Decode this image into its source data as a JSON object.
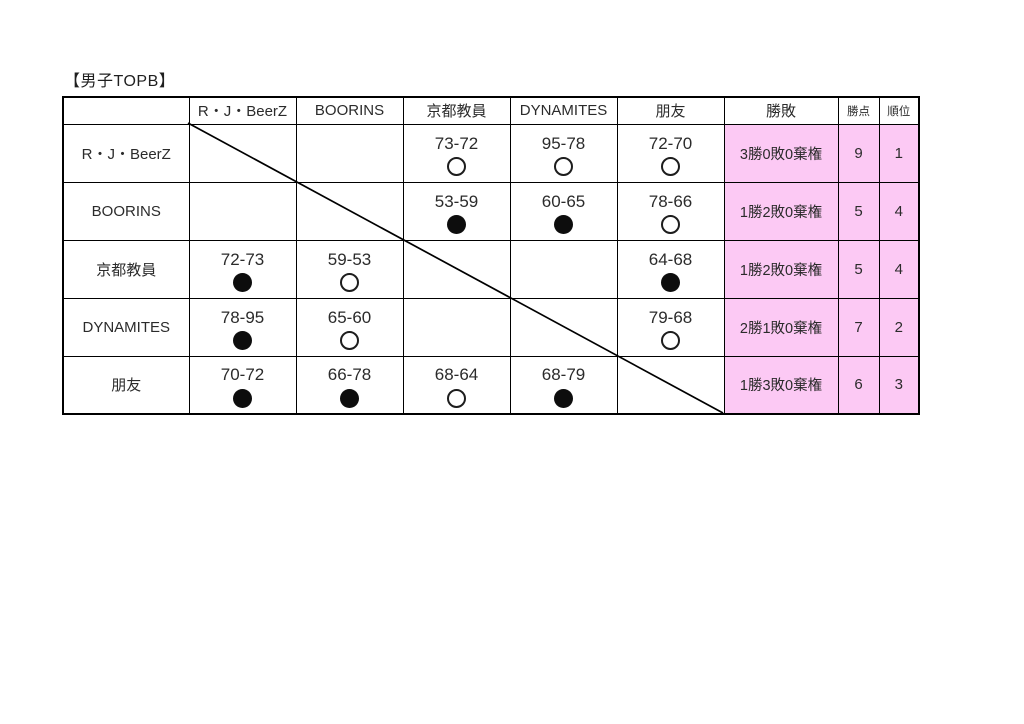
{
  "title": "【男子TOPB】",
  "colors": {
    "highlight_pink": "#fcc9f4",
    "border": "#000000",
    "text": "#2b2b2b"
  },
  "icons": {
    "win_mark": "○",
    "loss_mark": "●"
  },
  "table": {
    "headers": [
      "",
      "R・J・BeerZ",
      "BOORINS",
      "京都教員",
      "DYNAMITES",
      "朋友",
      "勝敗",
      "勝点",
      "順位"
    ],
    "rows": [
      {
        "team": "R・J・BeerZ",
        "results": [
          {
            "type": "self"
          },
          {
            "type": "empty"
          },
          {
            "type": "match",
            "score": "73-72",
            "result": "win"
          },
          {
            "type": "match",
            "score": "95-78",
            "result": "win"
          },
          {
            "type": "match",
            "score": "72-70",
            "result": "win"
          }
        ],
        "record": "3勝0敗0棄権",
        "points": "9",
        "rank": "1"
      },
      {
        "team": "BOORINS",
        "results": [
          {
            "type": "empty"
          },
          {
            "type": "self"
          },
          {
            "type": "match",
            "score": "53-59",
            "result": "loss"
          },
          {
            "type": "match",
            "score": "60-65",
            "result": "loss"
          },
          {
            "type": "match",
            "score": "78-66",
            "result": "win"
          }
        ],
        "record": "1勝2敗0棄権",
        "points": "5",
        "rank": "4"
      },
      {
        "team": "京都教員",
        "results": [
          {
            "type": "match",
            "score": "72-73",
            "result": "loss"
          },
          {
            "type": "match",
            "score": "59-53",
            "result": "win"
          },
          {
            "type": "self"
          },
          {
            "type": "empty"
          },
          {
            "type": "match",
            "score": "64-68",
            "result": "loss"
          }
        ],
        "record": "1勝2敗0棄権",
        "points": "5",
        "rank": "4"
      },
      {
        "team": "DYNAMITES",
        "results": [
          {
            "type": "match",
            "score": "78-95",
            "result": "loss"
          },
          {
            "type": "match",
            "score": "65-60",
            "result": "win"
          },
          {
            "type": "empty"
          },
          {
            "type": "self"
          },
          {
            "type": "match",
            "score": "79-68",
            "result": "win"
          }
        ],
        "record": "2勝1敗0棄権",
        "points": "7",
        "rank": "2"
      },
      {
        "team": "朋友",
        "results": [
          {
            "type": "match",
            "score": "70-72",
            "result": "loss"
          },
          {
            "type": "match",
            "score": "66-78",
            "result": "loss"
          },
          {
            "type": "match",
            "score": "68-64",
            "result": "win"
          },
          {
            "type": "match",
            "score": "68-79",
            "result": "loss"
          },
          {
            "type": "self"
          }
        ],
        "record": "1勝3敗0棄権",
        "points": "6",
        "rank": "3"
      }
    ]
  }
}
